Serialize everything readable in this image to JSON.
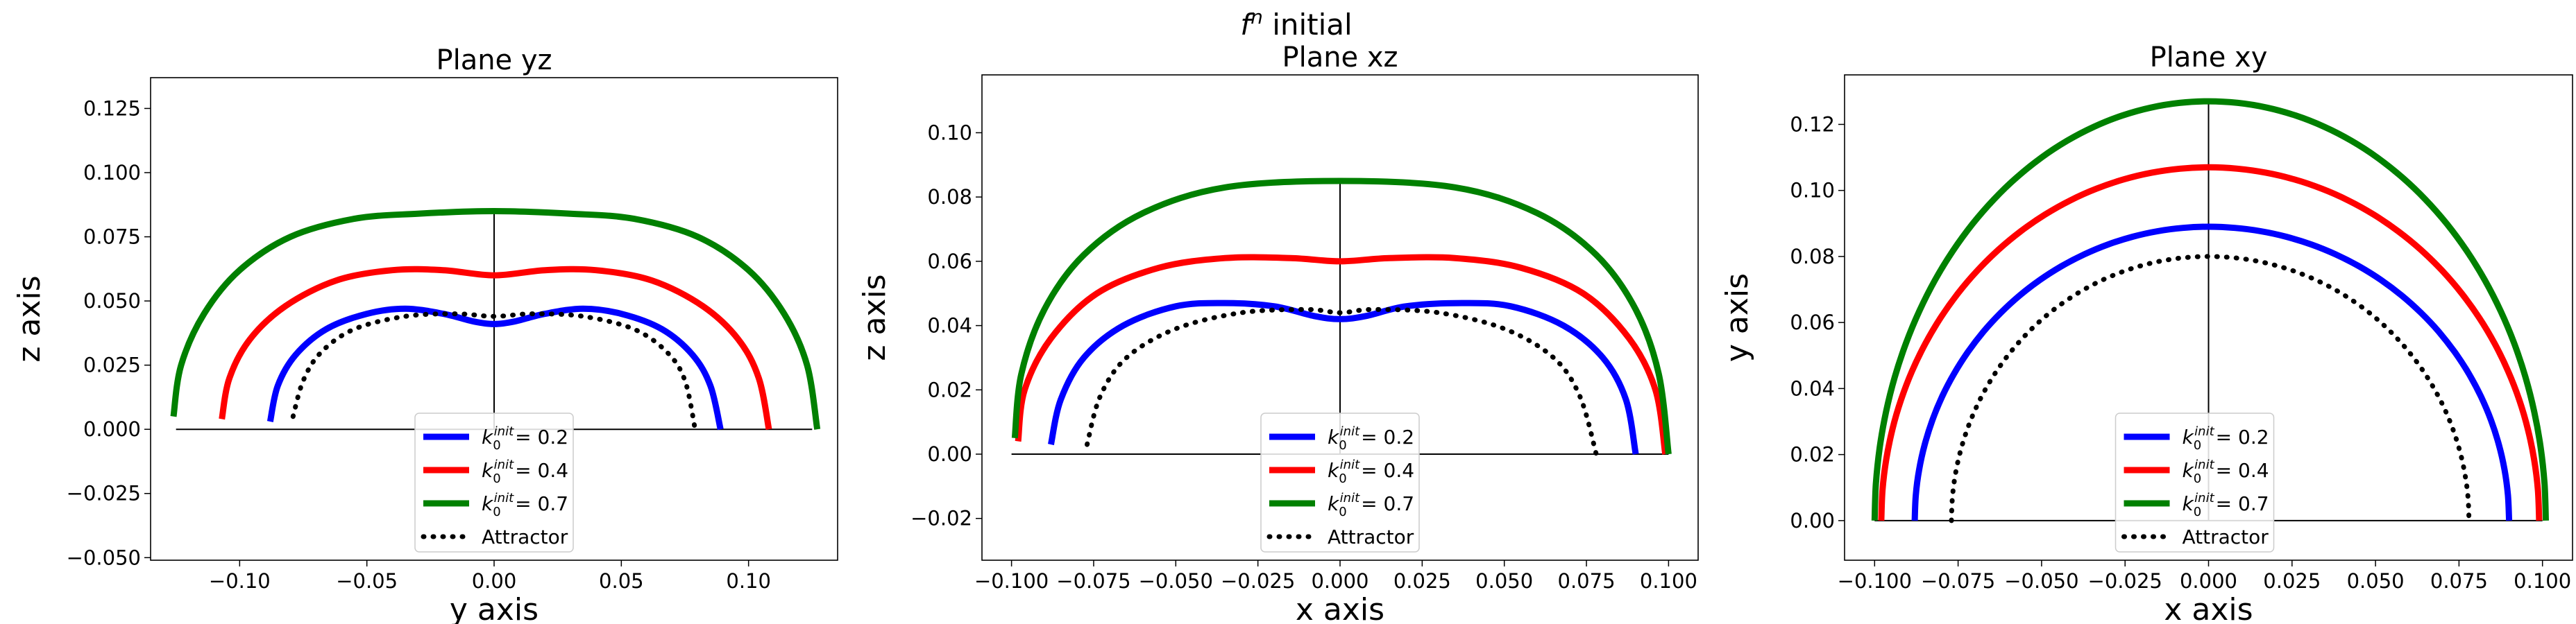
{
  "figure": {
    "suptitle": "f^n initial",
    "suptitle_base": "f",
    "suptitle_sup": "n",
    "suptitle_rest": " initial"
  },
  "legend": {
    "entries": [
      {
        "k": "k",
        "sub": "0",
        "sup": "init",
        "value": "= 0.2",
        "color": "#0000ff",
        "style": "solid"
      },
      {
        "k": "k",
        "sub": "0",
        "sup": "init",
        "value": "= 0.4",
        "color": "#ff0000",
        "style": "solid"
      },
      {
        "k": "k",
        "sub": "0",
        "sup": "init",
        "value": "= 0.7",
        "color": "#008000",
        "style": "solid"
      },
      {
        "label": "Attractor",
        "color": "#000000",
        "style": "dotted"
      }
    ]
  },
  "chart_data": [
    {
      "type": "line",
      "title": "Plane yz",
      "xlabel": "y axis",
      "ylabel": "z axis",
      "xlim": [
        -0.135,
        0.135
      ],
      "ylim": [
        -0.051,
        0.137
      ],
      "xticks": [
        -0.1,
        -0.05,
        0.0,
        0.05,
        0.1
      ],
      "xtick_labels": [
        "−0.10",
        "−0.05",
        "0.00",
        "0.05",
        "0.10"
      ],
      "yticks": [
        -0.05,
        -0.025,
        0.0,
        0.025,
        0.05,
        0.075,
        0.1,
        0.125
      ],
      "ytick_labels": [
        "−0.050",
        "−0.025",
        "0.000",
        "0.025",
        "0.050",
        "0.075",
        "0.100",
        "0.125"
      ],
      "axis_lines": {
        "horizontal": {
          "y": 0,
          "x": [
            -0.125,
            0.125
          ]
        },
        "vertical": {
          "x": 0,
          "y": [
            0,
            0.085
          ]
        }
      },
      "legend_position": "lower center",
      "series": [
        {
          "name": "k0 init = 0.2",
          "color": "#0000ff",
          "style": "solid",
          "points": [
            [
              -0.088,
              0.003
            ],
            [
              -0.085,
              0.017
            ],
            [
              -0.078,
              0.029
            ],
            [
              -0.066,
              0.039
            ],
            [
              -0.05,
              0.045
            ],
            [
              -0.035,
              0.047
            ],
            [
              -0.02,
              0.045
            ],
            [
              -0.008,
              0.042
            ],
            [
              0.0,
              0.041
            ],
            [
              0.008,
              0.042
            ],
            [
              0.02,
              0.045
            ],
            [
              0.035,
              0.047
            ],
            [
              0.05,
              0.045
            ],
            [
              0.066,
              0.039
            ],
            [
              0.078,
              0.029
            ],
            [
              0.085,
              0.017
            ],
            [
              0.089,
              0.0
            ]
          ]
        },
        {
          "name": "k0 init = 0.4",
          "color": "#ff0000",
          "style": "solid",
          "points": [
            [
              -0.107,
              0.004
            ],
            [
              -0.104,
              0.02
            ],
            [
              -0.096,
              0.035
            ],
            [
              -0.082,
              0.048
            ],
            [
              -0.062,
              0.058
            ],
            [
              -0.04,
              0.062
            ],
            [
              -0.02,
              0.062
            ],
            [
              0.0,
              0.06
            ],
            [
              0.02,
              0.062
            ],
            [
              0.04,
              0.062
            ],
            [
              0.062,
              0.058
            ],
            [
              0.082,
              0.048
            ],
            [
              0.096,
              0.035
            ],
            [
              0.104,
              0.02
            ],
            [
              0.108,
              0.0
            ]
          ]
        },
        {
          "name": "k0 init = 0.7",
          "color": "#008000",
          "style": "solid",
          "points": [
            [
              -0.126,
              0.005
            ],
            [
              -0.123,
              0.025
            ],
            [
              -0.114,
              0.045
            ],
            [
              -0.1,
              0.062
            ],
            [
              -0.08,
              0.075
            ],
            [
              -0.055,
              0.082
            ],
            [
              -0.03,
              0.084
            ],
            [
              0.0,
              0.085
            ],
            [
              0.03,
              0.084
            ],
            [
              0.055,
              0.082
            ],
            [
              0.08,
              0.075
            ],
            [
              0.1,
              0.062
            ],
            [
              0.114,
              0.045
            ],
            [
              0.123,
              0.025
            ],
            [
              0.127,
              0.0
            ]
          ]
        },
        {
          "name": "Attractor",
          "color": "#000000",
          "style": "dotted",
          "points": [
            [
              -0.079,
              0.005
            ],
            [
              -0.075,
              0.019
            ],
            [
              -0.068,
              0.03
            ],
            [
              -0.055,
              0.039
            ],
            [
              -0.035,
              0.044
            ],
            [
              -0.015,
              0.045
            ],
            [
              0.0,
              0.044
            ],
            [
              0.015,
              0.045
            ],
            [
              0.035,
              0.044
            ],
            [
              0.055,
              0.039
            ],
            [
              0.068,
              0.03
            ],
            [
              0.075,
              0.019
            ],
            [
              0.079,
              0.0
            ]
          ]
        }
      ]
    },
    {
      "type": "line",
      "title": "Plane xz",
      "xlabel": "x axis",
      "ylabel": "z axis",
      "xlim": [
        -0.109,
        0.109
      ],
      "ylim": [
        -0.033,
        0.118
      ],
      "xticks": [
        -0.1,
        -0.075,
        -0.05,
        -0.025,
        0.0,
        0.025,
        0.05,
        0.075,
        0.1
      ],
      "xtick_labels": [
        "−0.100",
        "−0.075",
        "−0.050",
        "−0.025",
        "0.000",
        "0.025",
        "0.050",
        "0.075",
        "0.100"
      ],
      "yticks": [
        -0.02,
        0.0,
        0.02,
        0.04,
        0.06,
        0.08,
        0.1
      ],
      "ytick_labels": [
        "−0.02",
        "0.00",
        "0.02",
        "0.04",
        "0.06",
        "0.08",
        "0.10"
      ],
      "axis_lines": {
        "horizontal": {
          "y": 0,
          "x": [
            -0.1,
            0.1
          ]
        },
        "vertical": {
          "x": 0,
          "y": [
            0,
            0.085
          ]
        }
      },
      "legend_position": "lower center",
      "series": [
        {
          "name": "k0 init = 0.2",
          "color": "#0000ff",
          "style": "solid",
          "points": [
            [
              -0.088,
              0.003
            ],
            [
              -0.085,
              0.017
            ],
            [
              -0.078,
              0.03
            ],
            [
              -0.066,
              0.04
            ],
            [
              -0.05,
              0.046
            ],
            [
              -0.035,
              0.047
            ],
            [
              -0.02,
              0.046
            ],
            [
              -0.008,
              0.043
            ],
            [
              0.0,
              0.042
            ],
            [
              0.008,
              0.043
            ],
            [
              0.02,
              0.046
            ],
            [
              0.037,
              0.047
            ],
            [
              0.052,
              0.046
            ],
            [
              0.068,
              0.04
            ],
            [
              0.08,
              0.03
            ],
            [
              0.087,
              0.017
            ],
            [
              0.09,
              0.0
            ]
          ]
        },
        {
          "name": "k0 init = 0.4",
          "color": "#ff0000",
          "style": "solid",
          "points": [
            [
              -0.098,
              0.004
            ],
            [
              -0.096,
              0.02
            ],
            [
              -0.088,
              0.036
            ],
            [
              -0.074,
              0.05
            ],
            [
              -0.055,
              0.058
            ],
            [
              -0.035,
              0.061
            ],
            [
              -0.015,
              0.061
            ],
            [
              0.0,
              0.06
            ],
            [
              0.015,
              0.061
            ],
            [
              0.035,
              0.061
            ],
            [
              0.055,
              0.058
            ],
            [
              0.074,
              0.05
            ],
            [
              0.088,
              0.036
            ],
            [
              0.096,
              0.02
            ],
            [
              0.099,
              0.0
            ]
          ]
        },
        {
          "name": "k0 init = 0.7",
          "color": "#008000",
          "style": "solid",
          "points": [
            [
              -0.099,
              0.005
            ],
            [
              -0.097,
              0.025
            ],
            [
              -0.09,
              0.045
            ],
            [
              -0.078,
              0.062
            ],
            [
              -0.06,
              0.075
            ],
            [
              -0.035,
              0.083
            ],
            [
              0.0,
              0.085
            ],
            [
              0.035,
              0.083
            ],
            [
              0.06,
              0.075
            ],
            [
              0.078,
              0.062
            ],
            [
              0.09,
              0.045
            ],
            [
              0.097,
              0.025
            ],
            [
              0.1,
              0.0
            ]
          ]
        },
        {
          "name": "Attractor",
          "color": "#000000",
          "style": "dotted",
          "points": [
            [
              -0.077,
              0.003
            ],
            [
              -0.073,
              0.018
            ],
            [
              -0.065,
              0.03
            ],
            [
              -0.05,
              0.039
            ],
            [
              -0.03,
              0.044
            ],
            [
              -0.01,
              0.045
            ],
            [
              0.0,
              0.044
            ],
            [
              0.01,
              0.045
            ],
            [
              0.03,
              0.044
            ],
            [
              0.05,
              0.039
            ],
            [
              0.065,
              0.03
            ],
            [
              0.073,
              0.018
            ],
            [
              0.078,
              0.0
            ]
          ]
        }
      ]
    },
    {
      "type": "line",
      "title": "Plane xy",
      "xlabel": "x axis",
      "ylabel": "y axis",
      "xlim": [
        -0.109,
        0.109
      ],
      "ylim": [
        -0.012,
        0.135
      ],
      "xticks": [
        -0.1,
        -0.075,
        -0.05,
        -0.025,
        0.0,
        0.025,
        0.05,
        0.075,
        0.1
      ],
      "xtick_labels": [
        "−0.100",
        "−0.075",
        "−0.050",
        "−0.025",
        "0.000",
        "0.025",
        "0.050",
        "0.075",
        "0.100"
      ],
      "yticks": [
        0.0,
        0.02,
        0.04,
        0.06,
        0.08,
        0.1,
        0.12
      ],
      "ytick_labels": [
        "0.00",
        "0.02",
        "0.04",
        "0.06",
        "0.08",
        "0.10",
        "0.12"
      ],
      "axis_lines": {
        "horizontal": {
          "y": 0,
          "x": [
            -0.1,
            0.1
          ]
        },
        "vertical": {
          "x": 0,
          "y": [
            0,
            0.127
          ]
        }
      },
      "legend_position": "lower center",
      "series": [
        {
          "name": "k0 init = 0.2",
          "color": "#0000ff",
          "style": "ellipse",
          "ellipse": {
            "rx_left": 0.088,
            "rx_right": 0.09,
            "ry": 0.089
          }
        },
        {
          "name": "k0 init = 0.4",
          "color": "#ff0000",
          "style": "ellipse",
          "ellipse": {
            "rx_left": 0.098,
            "rx_right": 0.099,
            "ry": 0.107
          }
        },
        {
          "name": "k0 init = 0.7",
          "color": "#008000",
          "style": "ellipse",
          "ellipse": {
            "rx_left": 0.1,
            "rx_right": 0.101,
            "ry": 0.127
          }
        },
        {
          "name": "Attractor",
          "color": "#000000",
          "style": "ellipse-dotted",
          "ellipse": {
            "rx_left": 0.077,
            "rx_right": 0.078,
            "ry": 0.08
          }
        }
      ]
    }
  ]
}
